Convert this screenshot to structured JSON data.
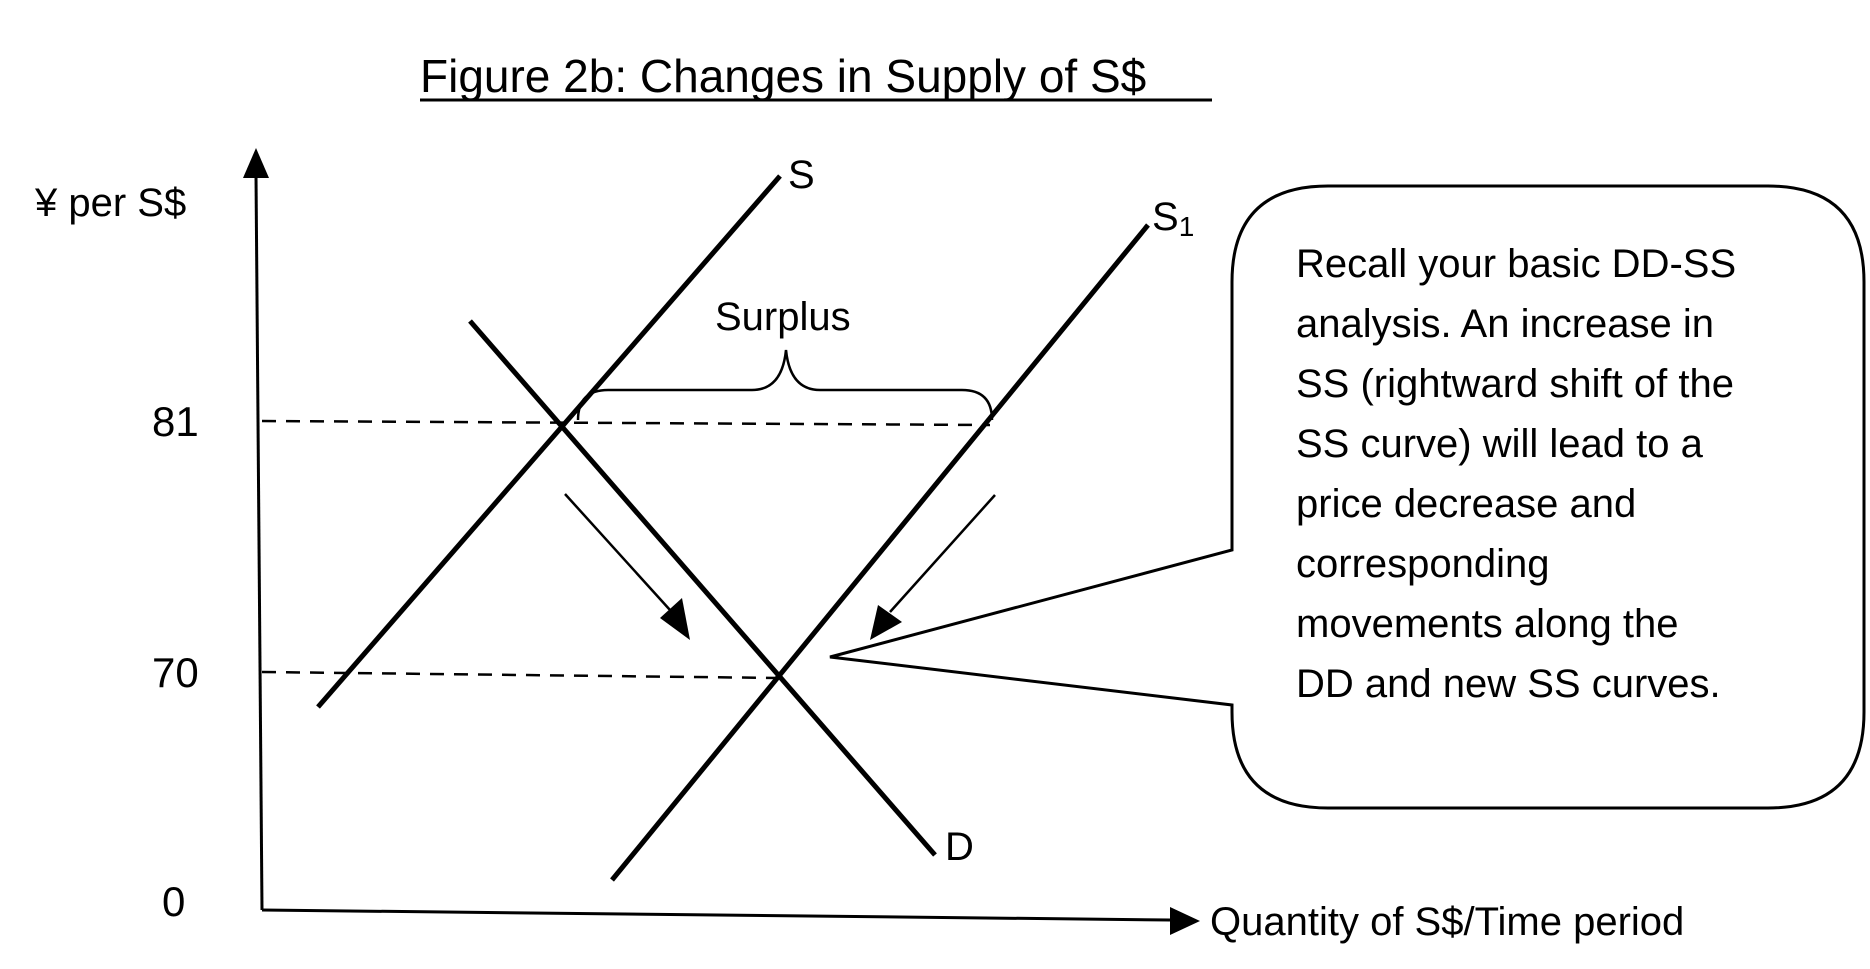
{
  "title": "Figure 2b: Changes in Supply of S$",
  "axes": {
    "y_label": "¥ per S$",
    "x_label": "Quantity of S$/Time period",
    "origin_label": "0",
    "y_ticks": [
      "81",
      "70"
    ]
  },
  "curves": {
    "supply": "S",
    "supply_new_base": "S",
    "supply_new_sub": "1",
    "demand": "D"
  },
  "annotations": {
    "surplus": "Surplus"
  },
  "callout": {
    "lines": [
      "Recall your basic DD-SS",
      "analysis. An increase in",
      "SS (rightward shift of the",
      "SS curve) will lead to a",
      "price decrease and",
      "corresponding",
      "movements along the",
      "DD and new SS curves."
    ]
  }
}
